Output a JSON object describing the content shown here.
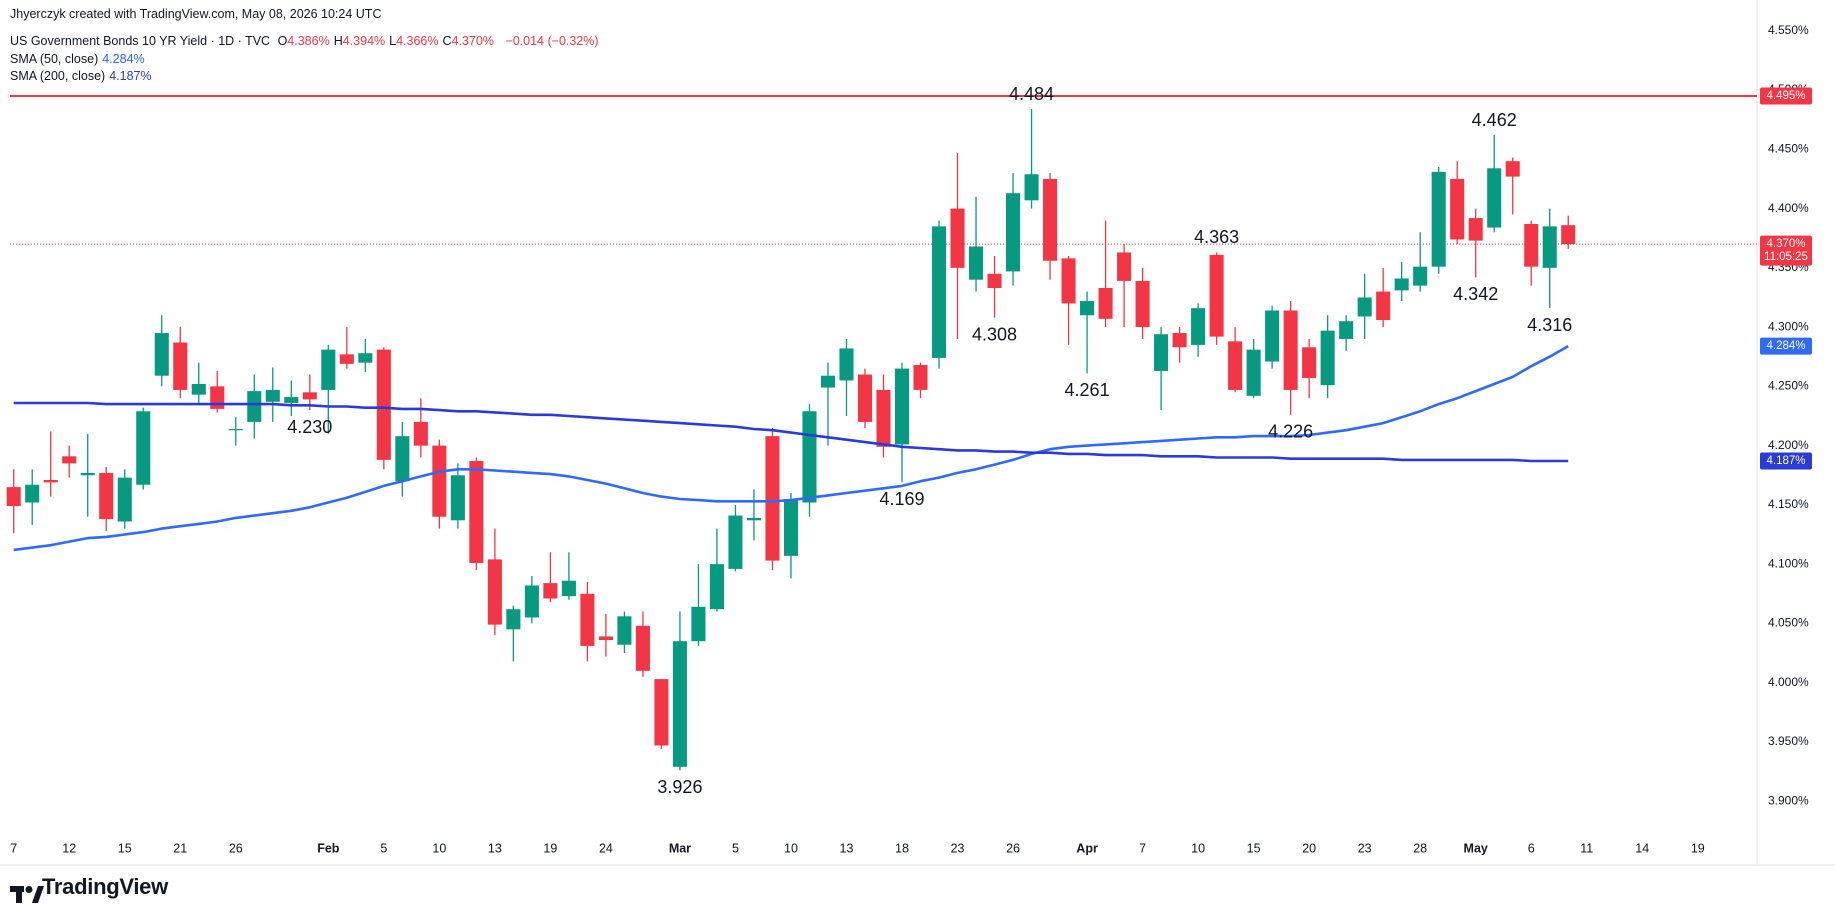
{
  "header": {
    "credit": "Jhyerczyk created with TradingView.com, May 08, 2026 10:24 UTC",
    "symbol": "US Government Bonds 10 YR Yield · 1D · TVC",
    "ohlc": [
      {
        "key": "O",
        "value": "4.386%"
      },
      {
        "key": "H",
        "value": "4.394%"
      },
      {
        "key": "L",
        "value": "4.366%"
      },
      {
        "key": "C",
        "value": "4.370%"
      }
    ],
    "change": "−0.014 (−0.32%)"
  },
  "footer": {
    "brand": "TradingView"
  },
  "chart_data": {
    "type": "candlestick",
    "up_color": "#089981",
    "down_color": "#f23645",
    "open": [
      4.165,
      4.152,
      4.171,
      4.191,
      4.175,
      4.177,
      4.136,
      4.167,
      4.259,
      4.287,
      4.243,
      4.25,
      4.213,
      4.22,
      4.237,
      4.236,
      4.245,
      4.247,
      4.277,
      4.27,
      4.281,
      4.17,
      4.22,
      4.2,
      4.137,
      4.187,
      4.104,
      4.045,
      4.055,
      4.084,
      4.073,
      4.075,
      4.039,
      4.032,
      4.048,
      4.003,
      3.929,
      4.035,
      4.062,
      4.096,
      4.137,
      4.208,
      4.107,
      4.152,
      4.249,
      4.255,
      4.26,
      4.247,
      4.201,
      4.268,
      4.274,
      4.4,
      4.34,
      4.345,
      4.347,
      4.407,
      4.425,
      4.358,
      4.31,
      4.333,
      4.363,
      4.339,
      4.263,
      4.295,
      4.285,
      4.361,
      4.288,
      4.242,
      4.271,
      4.314,
      4.283,
      4.251,
      4.29,
      4.309,
      4.33,
      4.331,
      4.335,
      4.351,
      4.425,
      4.392,
      4.384,
      4.44,
      4.387,
      4.35,
      4.386
    ],
    "high": [
      4.18,
      4.18,
      4.212,
      4.2,
      4.21,
      4.182,
      4.18,
      4.232,
      4.31,
      4.3,
      4.27,
      4.263,
      4.224,
      4.26,
      4.266,
      4.255,
      4.26,
      4.285,
      4.3,
      4.29,
      4.283,
      4.22,
      4.24,
      4.205,
      4.185,
      4.19,
      4.13,
      4.065,
      4.09,
      4.11,
      4.11,
      4.085,
      4.058,
      4.06,
      4.06,
      4.003,
      4.06,
      4.1,
      4.13,
      4.15,
      4.163,
      4.215,
      4.16,
      4.235,
      4.27,
      4.29,
      4.265,
      4.26,
      4.27,
      4.27,
      4.39,
      4.447,
      4.41,
      4.36,
      4.43,
      4.484,
      4.43,
      4.36,
      4.33,
      4.39,
      4.37,
      4.35,
      4.3,
      4.3,
      4.32,
      4.363,
      4.3,
      4.29,
      4.318,
      4.322,
      4.29,
      4.31,
      4.31,
      4.345,
      4.35,
      4.355,
      4.38,
      4.435,
      4.44,
      4.4,
      4.462,
      4.443,
      4.39,
      4.4,
      4.394
    ],
    "low": [
      4.126,
      4.133,
      4.157,
      4.173,
      4.14,
      4.128,
      4.13,
      4.163,
      4.25,
      4.24,
      4.235,
      4.228,
      4.2,
      4.206,
      4.22,
      4.225,
      4.23,
      4.21,
      4.265,
      4.262,
      4.18,
      4.157,
      4.19,
      4.13,
      4.13,
      4.095,
      4.04,
      4.018,
      4.05,
      4.068,
      4.07,
      4.018,
      4.022,
      4.025,
      4.005,
      3.944,
      3.926,
      4.031,
      4.06,
      4.094,
      4.12,
      4.095,
      4.088,
      4.14,
      4.2,
      4.225,
      4.215,
      4.19,
      4.169,
      4.24,
      4.265,
      4.29,
      4.33,
      4.308,
      4.335,
      4.4,
      4.34,
      4.285,
      4.261,
      4.3,
      4.3,
      4.29,
      4.23,
      4.27,
      4.275,
      4.285,
      4.245,
      4.24,
      4.265,
      4.226,
      4.24,
      4.24,
      4.28,
      4.29,
      4.3,
      4.322,
      4.33,
      4.345,
      4.37,
      4.342,
      4.38,
      4.395,
      4.335,
      4.316,
      4.366
    ],
    "close": [
      4.149,
      4.167,
      4.169,
      4.185,
      4.177,
      4.138,
      4.173,
      4.229,
      4.295,
      4.247,
      4.252,
      4.231,
      4.214,
      4.246,
      4.247,
      4.241,
      4.239,
      4.281,
      4.269,
      4.278,
      4.188,
      4.208,
      4.2,
      4.14,
      4.175,
      4.101,
      4.049,
      4.062,
      4.082,
      4.071,
      4.086,
      4.031,
      4.036,
      4.056,
      4.01,
      3.947,
      4.035,
      4.064,
      4.1,
      4.141,
      4.139,
      4.103,
      4.155,
      4.229,
      4.259,
      4.282,
      4.22,
      4.199,
      4.265,
      4.247,
      4.385,
      4.35,
      4.368,
      4.333,
      4.413,
      4.429,
      4.356,
      4.32,
      4.322,
      4.307,
      4.339,
      4.3,
      4.294,
      4.283,
      4.316,
      4.292,
      4.247,
      4.281,
      4.314,
      4.247,
      4.257,
      4.297,
      4.305,
      4.325,
      4.306,
      4.341,
      4.351,
      4.431,
      4.374,
      4.373,
      4.434,
      4.427,
      4.351,
      4.385,
      4.37
    ],
    "sma": [
      {
        "name": "SMA (50, close)",
        "color": "#2f6bf5",
        "value_label": "4.284%",
        "values": [
          4.112,
          4.114,
          4.116,
          4.119,
          4.122,
          4.123,
          4.125,
          4.127,
          4.13,
          4.132,
          4.134,
          4.136,
          4.139,
          4.141,
          4.143,
          4.145,
          4.148,
          4.152,
          4.156,
          4.161,
          4.166,
          4.17,
          4.174,
          4.178,
          4.18,
          4.18,
          4.179,
          4.178,
          4.177,
          4.176,
          4.174,
          4.171,
          4.168,
          4.164,
          4.16,
          4.157,
          4.155,
          4.154,
          4.153,
          4.153,
          4.153,
          4.153,
          4.154,
          4.156,
          4.158,
          4.16,
          4.162,
          4.164,
          4.166,
          4.17,
          4.173,
          4.177,
          4.18,
          4.184,
          4.188,
          4.193,
          4.197,
          4.199,
          4.2,
          4.201,
          4.202,
          4.203,
          4.204,
          4.205,
          4.206,
          4.207,
          4.207,
          4.208,
          4.208,
          4.208,
          4.209,
          4.211,
          4.213,
          4.216,
          4.219,
          4.224,
          4.229,
          4.235,
          4.24,
          4.246,
          4.252,
          4.258,
          4.267,
          4.275,
          4.284
        ]
      },
      {
        "name": "SMA (200, close)",
        "color": "#2b3bd6",
        "value_label": "4.187%",
        "values": [
          4.236,
          4.236,
          4.236,
          4.236,
          4.236,
          4.235,
          4.235,
          4.235,
          4.235,
          4.235,
          4.235,
          4.235,
          4.235,
          4.235,
          4.235,
          4.234,
          4.234,
          4.233,
          4.233,
          4.232,
          4.232,
          4.231,
          4.231,
          4.23,
          4.229,
          4.229,
          4.228,
          4.227,
          4.226,
          4.226,
          4.225,
          4.224,
          4.223,
          4.222,
          4.221,
          4.22,
          4.219,
          4.218,
          4.217,
          4.216,
          4.214,
          4.213,
          4.211,
          4.209,
          4.207,
          4.205,
          4.203,
          4.201,
          4.199,
          4.198,
          4.197,
          4.196,
          4.196,
          4.195,
          4.195,
          4.194,
          4.194,
          4.193,
          4.193,
          4.192,
          4.192,
          4.192,
          4.191,
          4.191,
          4.191,
          4.19,
          4.19,
          4.19,
          4.19,
          4.189,
          4.189,
          4.189,
          4.189,
          4.189,
          4.189,
          4.188,
          4.188,
          4.188,
          4.188,
          4.188,
          4.188,
          4.188,
          4.187,
          4.187,
          4.187
        ]
      }
    ],
    "hline": {
      "value": 4.495,
      "label": "4.495%",
      "color": "#f23645"
    },
    "last_price_label": "4.370%",
    "countdown": "11:05:25",
    "annotations": [
      "4.484",
      "4.308",
      "4.261",
      "4.230",
      "4.363",
      "4.226",
      "4.169",
      "3.926",
      "4.462",
      "4.342",
      "4.316"
    ],
    "grid": false,
    "xlim": [
      -0.2,
      94.2
    ],
    "xticks": [
      {
        "value": 0,
        "label": "7"
      },
      {
        "value": 3,
        "label": "12"
      },
      {
        "value": 6,
        "label": "15"
      },
      {
        "value": 9,
        "label": "21"
      },
      {
        "value": 12,
        "label": "26"
      },
      {
        "value": 17,
        "label": "Feb"
      },
      {
        "value": 20,
        "label": "5"
      },
      {
        "value": 23,
        "label": "10"
      },
      {
        "value": 26,
        "label": "13"
      },
      {
        "value": 29,
        "label": "19"
      },
      {
        "value": 32,
        "label": "24"
      },
      {
        "value": 36,
        "label": "Mar"
      },
      {
        "value": 39,
        "label": "5"
      },
      {
        "value": 42,
        "label": "10"
      },
      {
        "value": 45,
        "label": "13"
      },
      {
        "value": 48,
        "label": "18"
      },
      {
        "value": 51,
        "label": "23"
      },
      {
        "value": 54,
        "label": "26"
      },
      {
        "value": 58,
        "label": "Apr"
      },
      {
        "value": 61,
        "label": "7"
      },
      {
        "value": 64,
        "label": "10"
      },
      {
        "value": 67,
        "label": "15"
      },
      {
        "value": 70,
        "label": "20"
      },
      {
        "value": 73,
        "label": "23"
      },
      {
        "value": 76,
        "label": "28"
      },
      {
        "value": 79,
        "label": "May"
      },
      {
        "value": 82,
        "label": "6"
      },
      {
        "value": 85,
        "label": "11"
      },
      {
        "value": 88,
        "label": "14"
      },
      {
        "value": 91,
        "label": "19"
      }
    ],
    "ylim": [
      3.874,
      4.576
    ],
    "yticks": [
      {
        "value": 3.9,
        "label": "3.900%"
      },
      {
        "value": 3.95,
        "label": "3.950%"
      },
      {
        "value": 4.0,
        "label": "4.000%"
      },
      {
        "value": 4.05,
        "label": "4.050%"
      },
      {
        "value": 4.1,
        "label": "4.100%"
      },
      {
        "value": 4.15,
        "label": "4.150%"
      },
      {
        "value": 4.2,
        "label": "4.200%"
      },
      {
        "value": 4.25,
        "label": "4.250%"
      },
      {
        "value": 4.3,
        "label": "4.300%"
      },
      {
        "value": 4.35,
        "label": "4.350%"
      },
      {
        "value": 4.4,
        "label": "4.400%"
      },
      {
        "value": 4.45,
        "label": "4.450%"
      },
      {
        "value": 4.5,
        "label": "4.500%"
      },
      {
        "value": 4.55,
        "label": "4.550%"
      }
    ]
  }
}
